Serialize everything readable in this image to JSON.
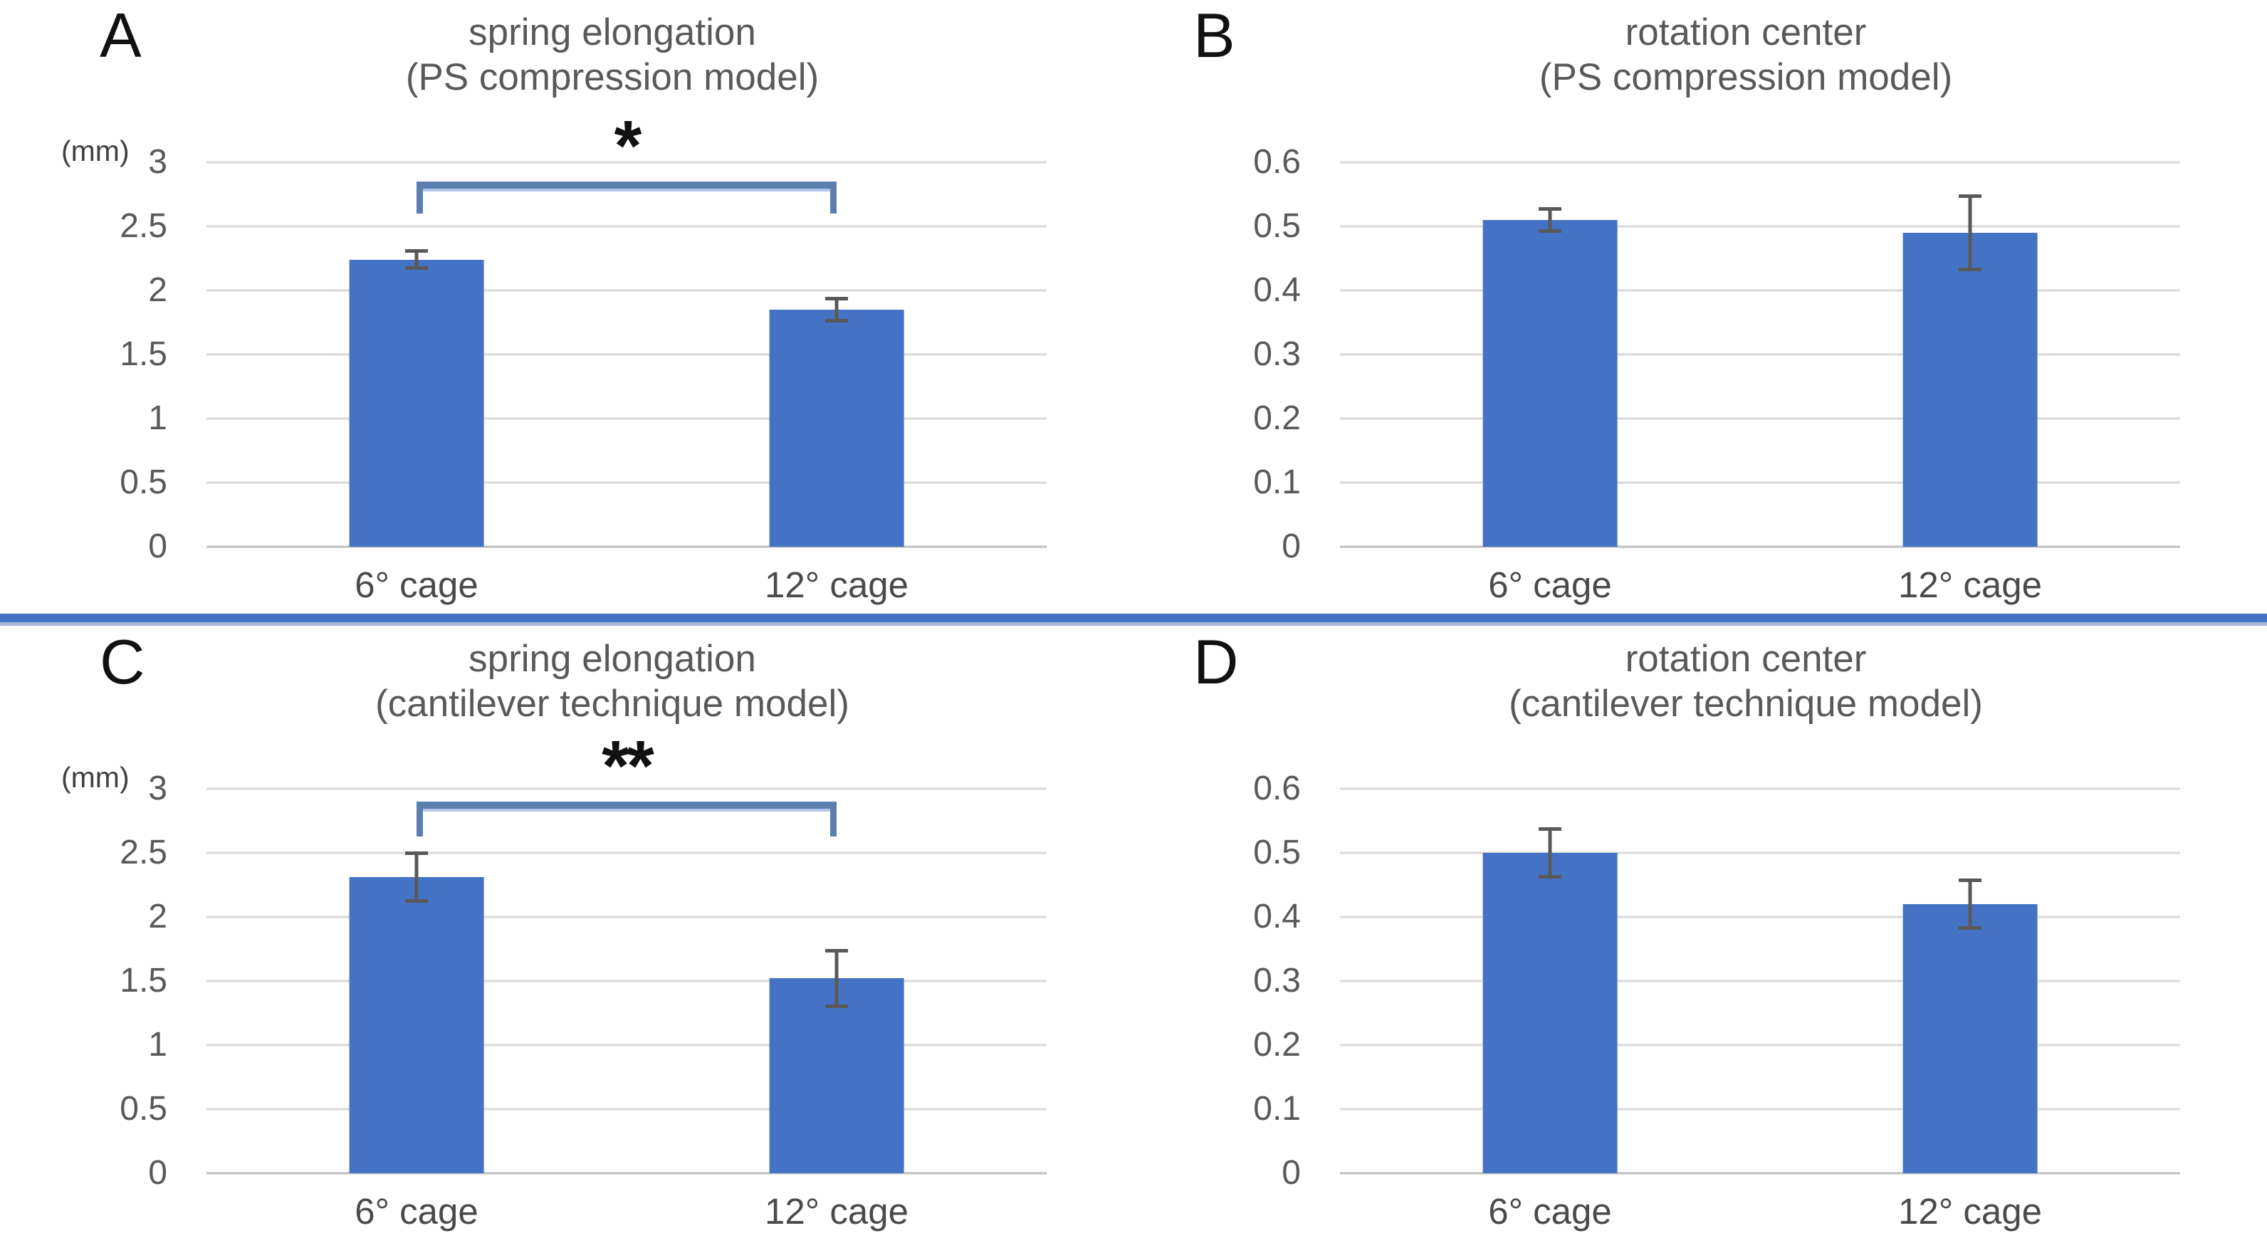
{
  "colors": {
    "bar": "#4472C4",
    "gridline": "#D9D9D9",
    "baseline": "#BFBFBF",
    "axis_text": "#595959",
    "title_text": "#595959",
    "panel_letter": "#111111",
    "error_bar": "#595959",
    "bracket": "#5B80B0",
    "bracket_underline": "#AFC8EA",
    "significance_text": "#111111",
    "divider": "#4472C4",
    "divider_shadow": "#A9B8D4",
    "background": "#FFFFFF"
  },
  "chart_data": [
    {
      "type": "bar",
      "panel_label": "A",
      "title": "spring elongation (PS compression model)",
      "title_lines": [
        "spring elongation",
        "(PS compression model)"
      ],
      "unit": "(mm)",
      "xlabel": "",
      "ylabel": "",
      "ylim": [
        0,
        3
      ],
      "yticks": [
        3,
        2.5,
        2,
        1.5,
        1,
        0.5,
        0
      ],
      "ytick_labels": [
        "3",
        "2.5",
        "2",
        "1.5",
        "1",
        "0.5",
        "0"
      ],
      "grid": true,
      "legend_position": "none",
      "categories": [
        "6° cage",
        "12° cage"
      ],
      "values": [
        2.24,
        1.85
      ],
      "errors": [
        0.08,
        0.1
      ],
      "significance": {
        "symbol": "*",
        "bracket_value": 2.85,
        "bracket_drop_to": 2.6
      }
    },
    {
      "type": "bar",
      "panel_label": "B",
      "title": "rotation center (PS compression model)",
      "title_lines": [
        "rotation center",
        "(PS compression model)"
      ],
      "unit": "",
      "xlabel": "",
      "ylabel": "",
      "ylim": [
        0,
        0.6
      ],
      "yticks": [
        0.6,
        0.5,
        0.4,
        0.3,
        0.2,
        0.1,
        0
      ],
      "ytick_labels": [
        "0.6",
        "0.5",
        "0.4",
        "0.3",
        "0.2",
        "0.1",
        "0"
      ],
      "grid": true,
      "legend_position": "none",
      "categories": [
        "6° cage",
        "12° cage"
      ],
      "values": [
        0.51,
        0.49
      ],
      "errors": [
        0.02,
        0.06
      ],
      "significance": null
    },
    {
      "type": "bar",
      "panel_label": "C",
      "title": "spring elongation (cantilever technique model)",
      "title_lines": [
        "spring elongation",
        "(cantilever technique model)"
      ],
      "unit": "(mm)",
      "xlabel": "",
      "ylabel": "",
      "ylim": [
        0,
        3
      ],
      "yticks": [
        3,
        2.5,
        2,
        1.5,
        1,
        0.5,
        0
      ],
      "ytick_labels": [
        "3",
        "2.5",
        "2",
        "1.5",
        "1",
        "0.5",
        "0"
      ],
      "grid": true,
      "legend_position": "none",
      "categories": [
        "6° cage",
        "12° cage"
      ],
      "values": [
        2.31,
        1.52
      ],
      "errors": [
        0.2,
        0.23
      ],
      "significance": {
        "symbol": "**",
        "bracket_value": 2.9,
        "bracket_drop_to": 2.63
      }
    },
    {
      "type": "bar",
      "panel_label": "D",
      "title": "rotation center (cantilever technique model)",
      "title_lines": [
        "rotation center",
        "(cantilever technique model)"
      ],
      "unit": "",
      "xlabel": "",
      "ylabel": "",
      "ylim": [
        0,
        0.6
      ],
      "yticks": [
        0.6,
        0.5,
        0.4,
        0.3,
        0.2,
        0.1,
        0
      ],
      "ytick_labels": [
        "0.6",
        "0.5",
        "0.4",
        "0.3",
        "0.2",
        "0.1",
        "0"
      ],
      "grid": true,
      "legend_position": "none",
      "categories": [
        "6° cage",
        "12° cage"
      ],
      "values": [
        0.5,
        0.42
      ],
      "errors": [
        0.04,
        0.04
      ],
      "significance": null
    }
  ]
}
